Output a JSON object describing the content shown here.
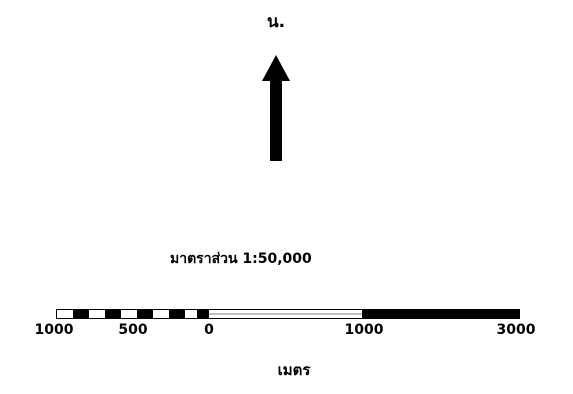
{
  "north": {
    "label": "น.",
    "icon": "north-arrow-icon"
  },
  "scale": {
    "ratio_label": "มาตราส่วน  1:50,000",
    "ticks": [
      "1000",
      "500",
      "0",
      "1000",
      "3000"
    ],
    "unit": "เมตร",
    "colors": {
      "dark": "#000000",
      "light": "#ffffff"
    }
  }
}
